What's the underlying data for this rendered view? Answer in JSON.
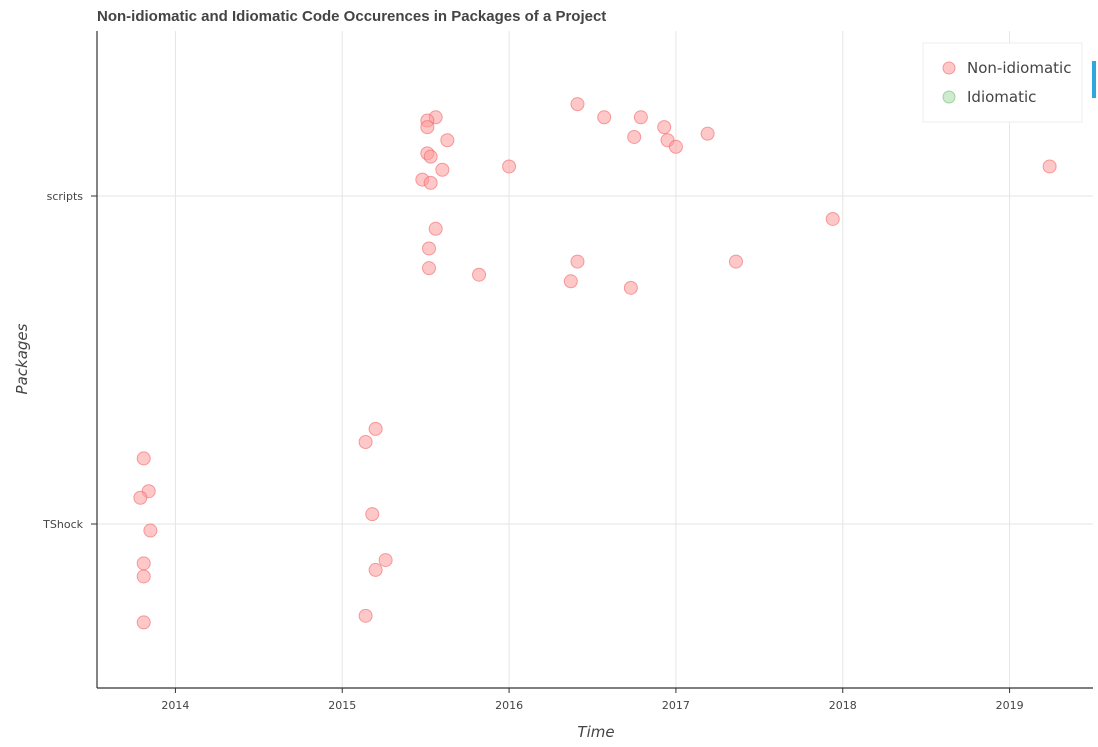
{
  "chart_data": {
    "type": "scatter",
    "title": "Non-idiomatic and Idiomatic Code Occurences in Packages of a Project",
    "xlabel": "Time",
    "ylabel": "Packages",
    "x_ticks": [
      "2014",
      "2015",
      "2016",
      "2017",
      "2018",
      "2019"
    ],
    "y_categories": [
      "TShock",
      "scripts"
    ],
    "xlim": [
      2013.53,
      2019.5
    ],
    "grid": true,
    "legend_position": "top-right",
    "colors": {
      "non_idiomatic": "#ff9a9a",
      "non_idiomatic_edge": "#f06464",
      "idiomatic": "#a8d8a8",
      "idiomatic_edge": "#6cbf6c",
      "accent": "#2ea7e0"
    },
    "series": [
      {
        "name": "Non-idiomatic",
        "points": [
          {
            "x": 2013.81,
            "category": "TShock",
            "offset": 0.2
          },
          {
            "x": 2013.84,
            "category": "TShock",
            "offset": 0.1
          },
          {
            "x": 2013.79,
            "category": "TShock",
            "offset": 0.08
          },
          {
            "x": 2013.85,
            "category": "TShock",
            "offset": -0.02
          },
          {
            "x": 2013.81,
            "category": "TShock",
            "offset": -0.12
          },
          {
            "x": 2013.81,
            "category": "TShock",
            "offset": -0.16
          },
          {
            "x": 2013.81,
            "category": "TShock",
            "offset": -0.3
          },
          {
            "x": 2015.2,
            "category": "TShock",
            "offset": 0.29
          },
          {
            "x": 2015.14,
            "category": "TShock",
            "offset": 0.25
          },
          {
            "x": 2015.18,
            "category": "TShock",
            "offset": 0.03
          },
          {
            "x": 2015.26,
            "category": "TShock",
            "offset": -0.11
          },
          {
            "x": 2015.2,
            "category": "TShock",
            "offset": -0.14
          },
          {
            "x": 2015.14,
            "category": "TShock",
            "offset": -0.28
          },
          {
            "x": 2015.56,
            "category": "scripts",
            "offset": 0.24
          },
          {
            "x": 2015.51,
            "category": "scripts",
            "offset": 0.23
          },
          {
            "x": 2015.51,
            "category": "scripts",
            "offset": 0.21
          },
          {
            "x": 2015.63,
            "category": "scripts",
            "offset": 0.17
          },
          {
            "x": 2015.51,
            "category": "scripts",
            "offset": 0.13
          },
          {
            "x": 2015.53,
            "category": "scripts",
            "offset": 0.12
          },
          {
            "x": 2015.6,
            "category": "scripts",
            "offset": 0.08
          },
          {
            "x": 2015.48,
            "category": "scripts",
            "offset": 0.05
          },
          {
            "x": 2015.53,
            "category": "scripts",
            "offset": 0.04
          },
          {
            "x": 2016.0,
            "category": "scripts",
            "offset": 0.09
          },
          {
            "x": 2015.56,
            "category": "scripts",
            "offset": -0.1
          },
          {
            "x": 2015.52,
            "category": "scripts",
            "offset": -0.16
          },
          {
            "x": 2015.52,
            "category": "scripts",
            "offset": -0.22
          },
          {
            "x": 2015.82,
            "category": "scripts",
            "offset": -0.24
          },
          {
            "x": 2016.41,
            "category": "scripts",
            "offset": 0.28
          },
          {
            "x": 2016.57,
            "category": "scripts",
            "offset": 0.24
          },
          {
            "x": 2016.79,
            "category": "scripts",
            "offset": 0.24
          },
          {
            "x": 2016.75,
            "category": "scripts",
            "offset": 0.18
          },
          {
            "x": 2016.93,
            "category": "scripts",
            "offset": 0.21
          },
          {
            "x": 2016.95,
            "category": "scripts",
            "offset": 0.17
          },
          {
            "x": 2017.0,
            "category": "scripts",
            "offset": 0.15
          },
          {
            "x": 2017.19,
            "category": "scripts",
            "offset": 0.19
          },
          {
            "x": 2016.41,
            "category": "scripts",
            "offset": -0.2
          },
          {
            "x": 2016.37,
            "category": "scripts",
            "offset": -0.26
          },
          {
            "x": 2016.73,
            "category": "scripts",
            "offset": -0.28
          },
          {
            "x": 2017.36,
            "category": "scripts",
            "offset": -0.2
          },
          {
            "x": 2017.94,
            "category": "scripts",
            "offset": -0.07
          },
          {
            "x": 2019.24,
            "category": "scripts",
            "offset": 0.09
          }
        ]
      },
      {
        "name": "Idiomatic",
        "points": []
      }
    ]
  }
}
